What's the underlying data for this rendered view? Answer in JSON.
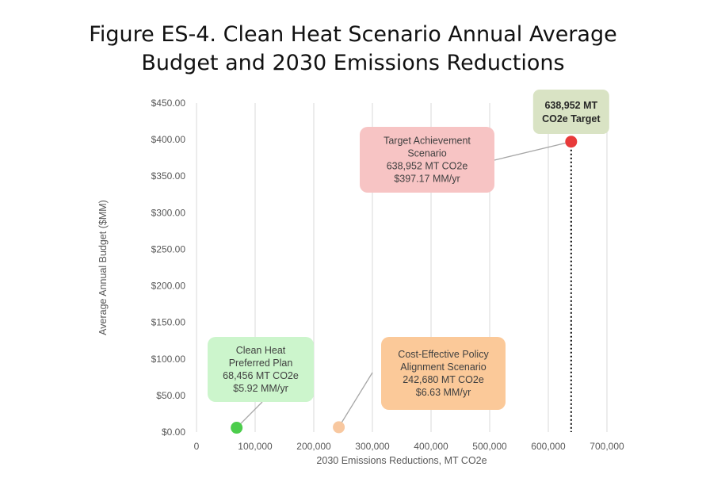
{
  "chart_data": {
    "type": "scatter",
    "title": "Figure ES-4. Clean Heat Scenario Annual Average Budget and 2030 Emissions Reductions",
    "xlabel": "2030 Emissions Reductions, MT CO2e",
    "ylabel": "Average Annual Budget ($MM)",
    "xlim": [
      0,
      700000
    ],
    "ylim": [
      0,
      450
    ],
    "x_ticks": [
      "0",
      "100,000",
      "200,000",
      "300,000",
      "400,000",
      "500,000",
      "600,000",
      "700,000"
    ],
    "y_ticks": [
      "$0.00",
      "$50.00",
      "$100.00",
      "$150.00",
      "$200.00",
      "$250.00",
      "$300.00",
      "$350.00",
      "$400.00",
      "$450.00"
    ],
    "grid": "vertical",
    "points": [
      {
        "x": 68456,
        "y": 5.92,
        "color": "#4ccd4c",
        "fill": "#ccf5cc",
        "label": [
          "Clean Heat",
          "Preferred Plan",
          "68,456 MT CO2e",
          "$5.92 MM/yr"
        ]
      },
      {
        "x": 242680,
        "y": 6.63,
        "color": "#f8c8a0",
        "fill": "#fbc999",
        "label": [
          "Cost-Effective Policy",
          "Alignment Scenario",
          "242,680 MT CO2e",
          "$6.63 MM/yr"
        ]
      },
      {
        "x": 638952,
        "y": 397.17,
        "color": "#e83a3a",
        "fill": "#f7c4c4",
        "label": [
          "Target Achievement",
          "Scenario",
          "638,952 MT CO2e",
          "$397.17 MM/yr"
        ]
      }
    ],
    "target_line": {
      "x": 638952,
      "label": [
        "638,952 MT",
        "CO2e Target"
      ],
      "fill": "#d9e3c4"
    }
  }
}
